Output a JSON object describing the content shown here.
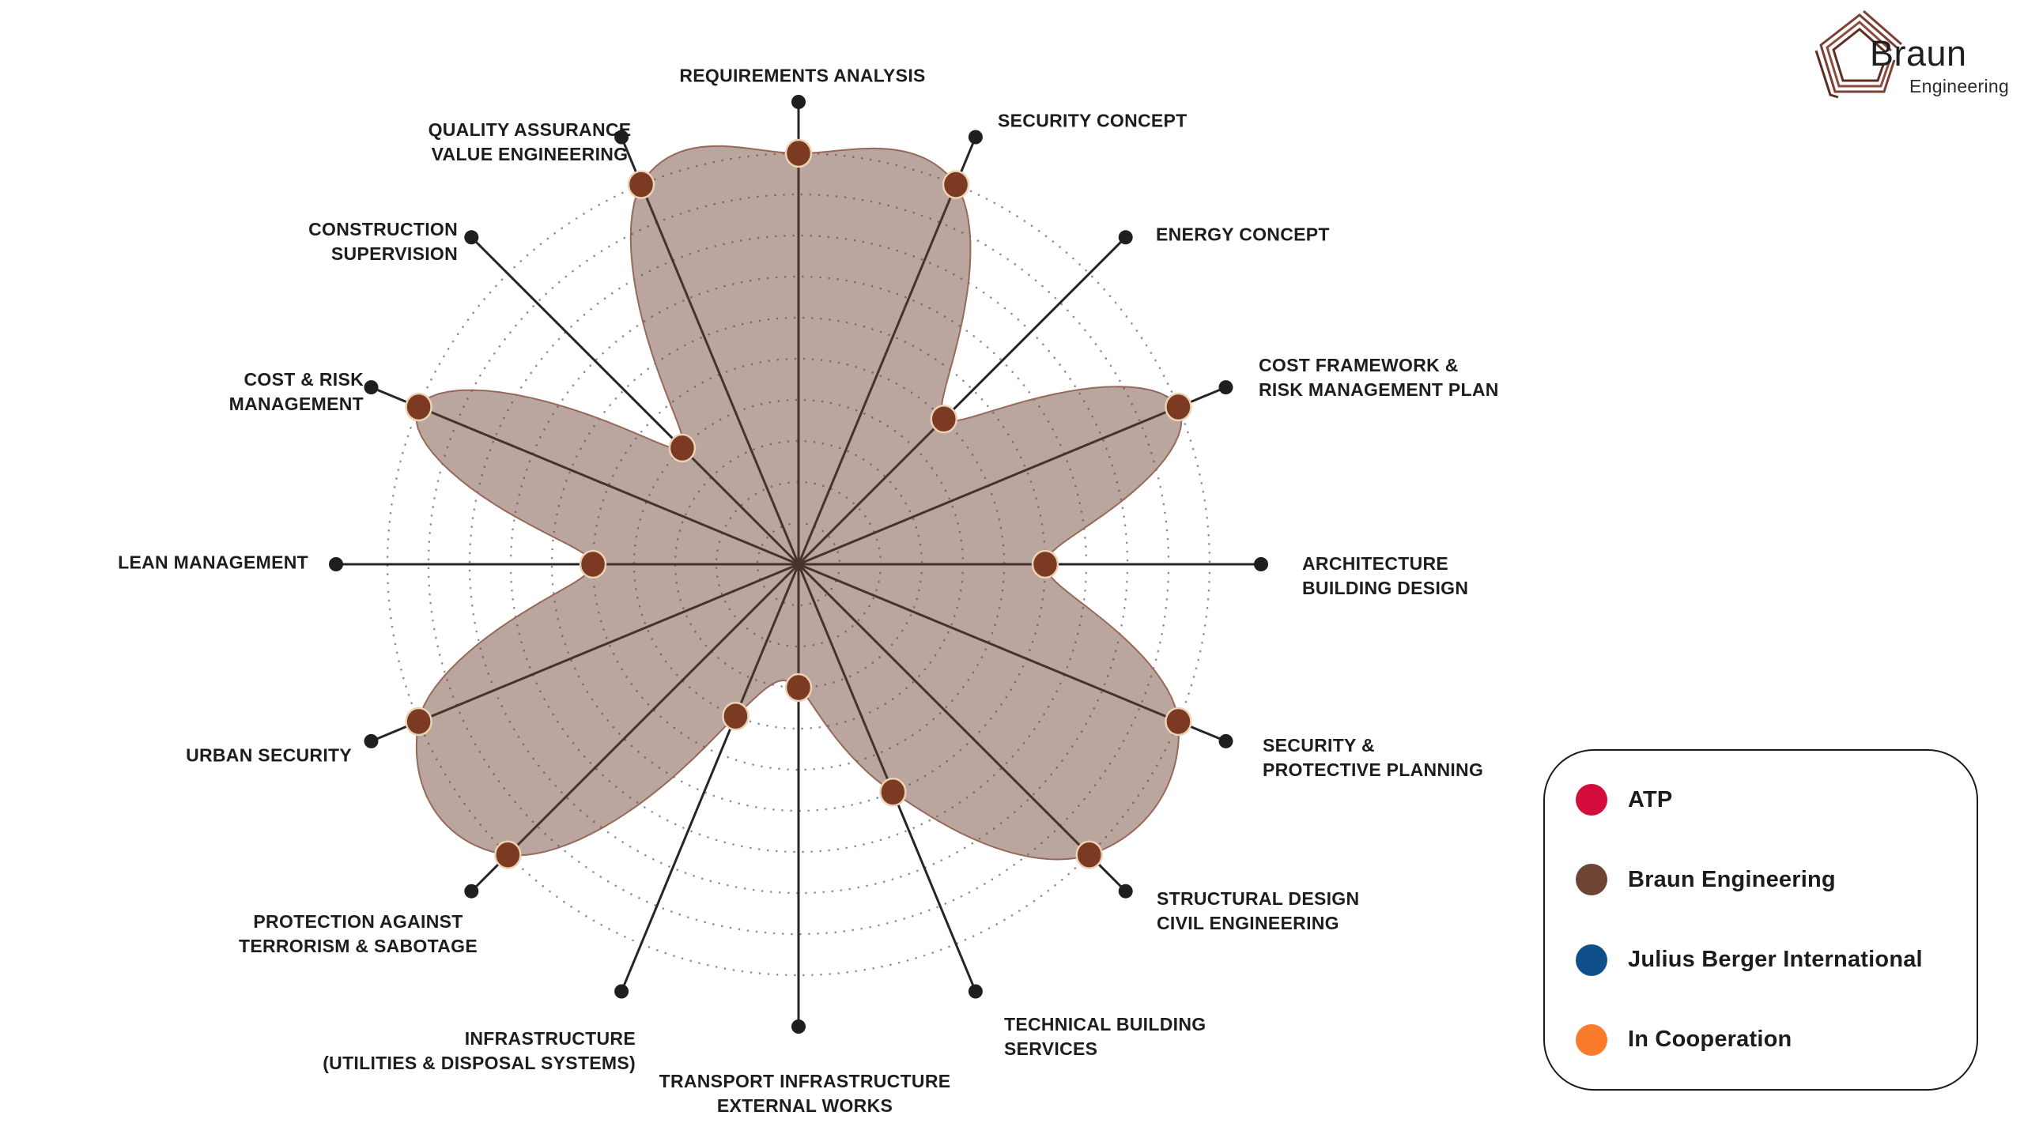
{
  "logo": {
    "name": "Braun",
    "subtitle": "Engineering"
  },
  "legend": {
    "items": [
      {
        "label": "ATP",
        "color": "#D30C3C"
      },
      {
        "label": "Braun Engineering",
        "color": "#6E4534"
      },
      {
        "label": "Julius Berger International",
        "color": "#10508A"
      },
      {
        "label": "In Cooperation",
        "color": "#F97B2B"
      }
    ]
  },
  "chart_data": {
    "type": "radar",
    "title": "",
    "categories": [
      "REQUIREMENTS ANALYSIS",
      "SECURITY CONCEPT",
      "ENERGY CONCEPT",
      "COST FRAMEWORK &\nRISK MANAGEMENT PLAN",
      "ARCHITECTURE\nBUILDING DESIGN",
      "SECURITY &\nPROTECTIVE PLANNING",
      "STRUCTURAL DESIGN\nCIVIL ENGINEERING",
      "TECHNICAL BUILDING\nSERVICES",
      "TRANSPORT INFRASTRUCTURE\nEXTERNAL WORKS",
      "INFRASTRUCTURE\n(UTILITIES & DISPOSAL SYSTEMS)",
      "PROTECTION AGAINST\nTERRORISM & SABOTAGE",
      "URBAN SECURITY",
      "LEAN MANAGEMENT",
      "COST & RISK\nMANAGEMENT",
      "CONSTRUCTION\nSUPERVISION",
      "QUALITY ASSURANCE\nVALUE ENGINEERING"
    ],
    "series": [
      {
        "name": "Braun Engineering",
        "marker_color": "#7B3A21",
        "marker_rim_color": "#EBD2B4",
        "fill_color": "#6D4232",
        "edge_color": "#97695A",
        "values": [
          10,
          10,
          5,
          10,
          6,
          10,
          10,
          6,
          3,
          4,
          10,
          10,
          5,
          10,
          4,
          10
        ]
      }
    ],
    "scale": {
      "min": 0,
      "max": 10,
      "rings": 10
    },
    "grid": "dotted-circles",
    "grid_color": "#8F8F8F",
    "axis_color": "#262626",
    "axis_end_dot_color": "#1F1F1F",
    "legend_position": "bottom-right"
  }
}
